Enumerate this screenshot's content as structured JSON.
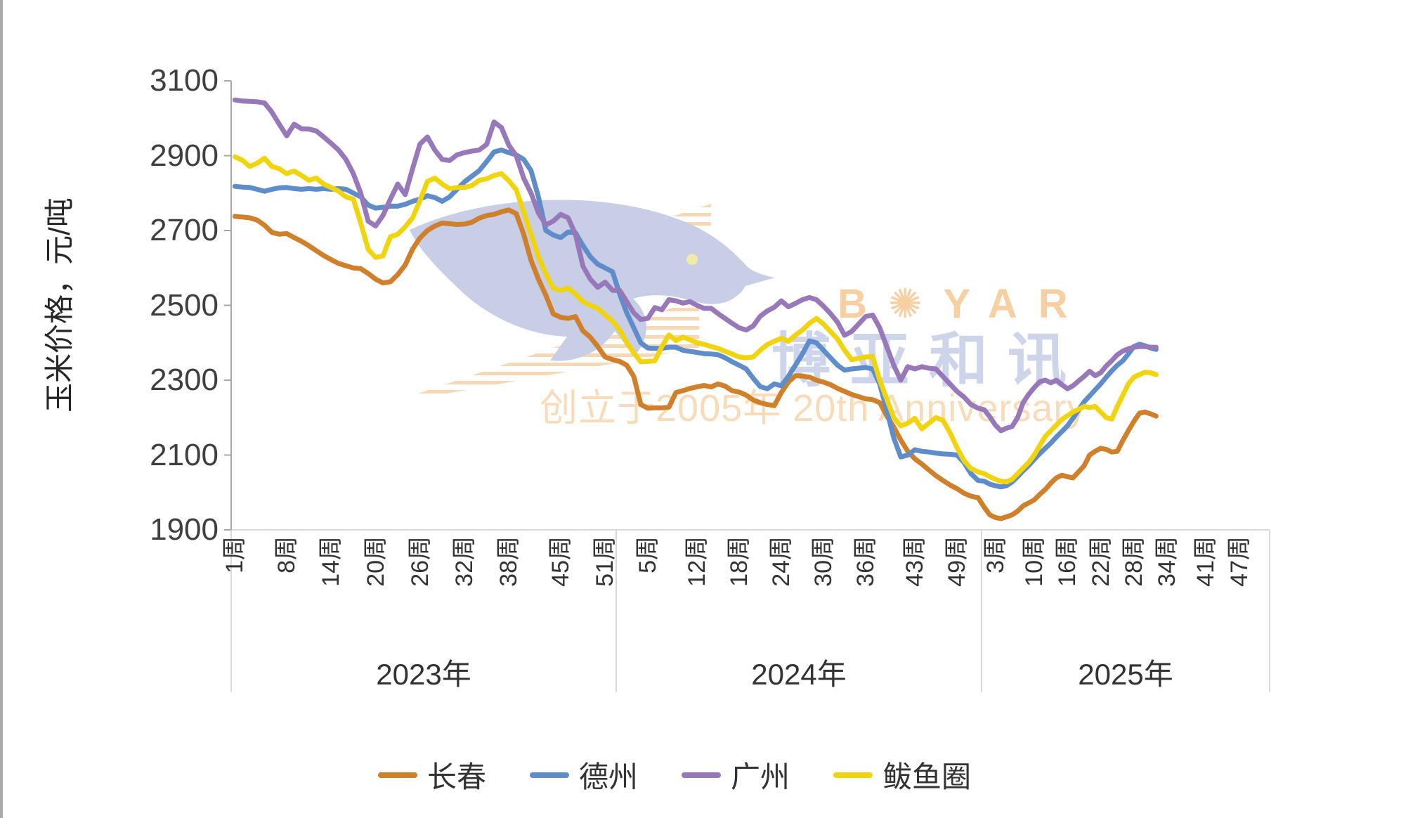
{
  "watermark": {
    "brand_en": "B✺YAR",
    "brand_cn": "博亚和讯",
    "anniversary": "创立于2005年  20th Anniversary",
    "bird_color": "#c7cee5",
    "bird_eye_color": "#f0ebaa",
    "stripe_color": "#f4cb9e",
    "brand_en_color": "#f6d0a2",
    "brand_cn_color": "#ced5eb",
    "anniversary_color": "#f8dcba"
  },
  "axis_style": {
    "baseline_color": "#d9d9d9",
    "yaxis_color": "#a6a6a6",
    "separator_color": "#d9d9d9",
    "tick_text_color": "#3f3f3f"
  },
  "chart_data": {
    "type": "line",
    "title": "",
    "xlabel": "",
    "ylabel": "玉米价格，元/吨",
    "ylim": [
      1900,
      3100
    ],
    "y_ticks": [
      3100,
      2900,
      2700,
      2500,
      2300,
      2100,
      1900
    ],
    "grid": false,
    "legend_position": "bottom",
    "x_axis_note": "weekly category axis grouped by year; 2025 data ends at week 32",
    "years": [
      {
        "label": "2023年",
        "n_weeks": 52,
        "tick_weeks": [
          1,
          8,
          14,
          20,
          26,
          32,
          38,
          45,
          51
        ],
        "tick_labels": [
          "1周",
          "8周",
          "14周",
          "20周",
          "26周",
          "32周",
          "38周",
          "45周",
          "51周"
        ]
      },
      {
        "label": "2024年",
        "n_weeks": 52,
        "tick_weeks": [
          5,
          12,
          18,
          24,
          30,
          36,
          43,
          49
        ],
        "tick_labels": [
          "5周",
          "12周",
          "18周",
          "24周",
          "30周",
          "36周",
          "43周",
          "49周"
        ]
      },
      {
        "label": "2025年",
        "n_weeks": 52,
        "tick_weeks": [
          3,
          10,
          16,
          22,
          28,
          34,
          41,
          47
        ],
        "tick_labels": [
          "3周",
          "10周",
          "16周",
          "22周",
          "28周",
          "34周",
          "41周",
          "47周"
        ]
      }
    ],
    "series": [
      {
        "name": "长春",
        "color": "#d0802b",
        "values_2023": [
          2738,
          2736,
          2734,
          2728,
          2714,
          2695,
          2690,
          2692,
          2681,
          2671,
          2659,
          2646,
          2633,
          2622,
          2612,
          2606,
          2600,
          2598,
          2585,
          2570,
          2560,
          2563,
          2582,
          2608,
          2650,
          2680,
          2700,
          2712,
          2720,
          2718,
          2716,
          2717,
          2722,
          2733,
          2740,
          2743,
          2750,
          2755,
          2745,
          2690,
          2620,
          2570,
          2527,
          2477,
          2468,
          2465,
          2470,
          2432,
          2415,
          2390,
          2362,
          2355
        ],
        "values_2024": [
          2350,
          2340,
          2310,
          2235,
          2225,
          2226,
          2226,
          2228,
          2267,
          2272,
          2278,
          2282,
          2286,
          2282,
          2290,
          2284,
          2272,
          2268,
          2260,
          2247,
          2240,
          2235,
          2232,
          2267,
          2295,
          2312,
          2311,
          2308,
          2300,
          2295,
          2288,
          2278,
          2270,
          2262,
          2256,
          2250,
          2248,
          2240,
          2205,
          2175,
          2140,
          2110,
          2090,
          2076,
          2060,
          2045,
          2032,
          2020,
          2010,
          1998,
          1990,
          1986
        ],
        "values_2025": [
          1960,
          1940,
          1933,
          1930,
          1935,
          1940,
          1950,
          1964,
          1972,
          1980,
          1995,
          2008,
          2025,
          2039,
          2046,
          2042,
          2039,
          2055,
          2071,
          2100,
          2110,
          2118,
          2115,
          2108,
          2110,
          2139,
          2165,
          2190,
          2212,
          2215,
          2210,
          2204
        ]
      },
      {
        "name": "德州",
        "color": "#5f8dc9",
        "values_2023": [
          2818,
          2816,
          2815,
          2810,
          2805,
          2810,
          2814,
          2815,
          2812,
          2810,
          2812,
          2810,
          2812,
          2810,
          2812,
          2810,
          2800,
          2790,
          2768,
          2760,
          2762,
          2765,
          2765,
          2770,
          2778,
          2784,
          2793,
          2788,
          2778,
          2790,
          2810,
          2830,
          2845,
          2860,
          2884,
          2910,
          2915,
          2908,
          2902,
          2890,
          2860,
          2790,
          2700,
          2688,
          2681,
          2696,
          2694,
          2660,
          2630,
          2610,
          2600,
          2590
        ],
        "values_2024": [
          2530,
          2480,
          2440,
          2400,
          2386,
          2385,
          2385,
          2388,
          2388,
          2380,
          2377,
          2374,
          2371,
          2370,
          2368,
          2360,
          2349,
          2340,
          2330,
          2305,
          2283,
          2277,
          2290,
          2285,
          2310,
          2340,
          2370,
          2405,
          2400,
          2380,
          2360,
          2340,
          2327,
          2330,
          2332,
          2334,
          2330,
          2290,
          2220,
          2146,
          2095,
          2100,
          2114,
          2110,
          2108,
          2105,
          2103,
          2102,
          2100,
          2080,
          2050,
          2032
        ],
        "values_2025": [
          2030,
          2022,
          2018,
          2015,
          2018,
          2028,
          2042,
          2058,
          2072,
          2088,
          2104,
          2118,
          2132,
          2148,
          2163,
          2178,
          2198,
          2220,
          2242,
          2258,
          2274,
          2290,
          2308,
          2325,
          2340,
          2352,
          2370,
          2390,
          2396,
          2392,
          2386,
          2382
        ]
      },
      {
        "name": "广州",
        "color": "#9779ba",
        "values_2023": [
          3049,
          3046,
          3045,
          3044,
          3041,
          3016,
          2984,
          2953,
          2984,
          2972,
          2971,
          2966,
          2950,
          2933,
          2915,
          2890,
          2852,
          2800,
          2725,
          2712,
          2740,
          2784,
          2824,
          2796,
          2865,
          2931,
          2950,
          2915,
          2890,
          2887,
          2902,
          2908,
          2912,
          2915,
          2930,
          2990,
          2975,
          2928,
          2900,
          2840,
          2800,
          2747,
          2715,
          2725,
          2743,
          2734,
          2690,
          2605,
          2570,
          2548,
          2562,
          2540
        ],
        "values_2024": [
          2540,
          2510,
          2480,
          2462,
          2465,
          2494,
          2488,
          2515,
          2512,
          2506,
          2510,
          2500,
          2492,
          2492,
          2478,
          2465,
          2452,
          2440,
          2434,
          2445,
          2471,
          2485,
          2495,
          2512,
          2496,
          2505,
          2515,
          2521,
          2515,
          2498,
          2478,
          2455,
          2420,
          2430,
          2450,
          2470,
          2474,
          2440,
          2390,
          2340,
          2300,
          2336,
          2330,
          2336,
          2332,
          2330,
          2310,
          2290,
          2270,
          2255,
          2235,
          2225
        ],
        "values_2025": [
          2221,
          2202,
          2180,
          2165,
          2172,
          2176,
          2200,
          2240,
          2262,
          2280,
          2296,
          2300,
          2293,
          2300,
          2288,
          2277,
          2285,
          2298,
          2310,
          2324,
          2312,
          2320,
          2338,
          2352,
          2368,
          2378,
          2384,
          2388,
          2390,
          2390,
          2388,
          2388
        ]
      },
      {
        "name": "鲅鱼圈",
        "color": "#f0d410",
        "values_2023": [
          2897,
          2888,
          2871,
          2880,
          2893,
          2871,
          2865,
          2852,
          2859,
          2847,
          2834,
          2840,
          2824,
          2815,
          2805,
          2790,
          2784,
          2720,
          2650,
          2628,
          2632,
          2683,
          2690,
          2710,
          2734,
          2780,
          2831,
          2840,
          2824,
          2812,
          2815,
          2815,
          2820,
          2834,
          2838,
          2847,
          2852,
          2833,
          2809,
          2750,
          2690,
          2630,
          2584,
          2546,
          2540,
          2546,
          2530,
          2510,
          2500,
          2492,
          2475,
          2458
        ],
        "values_2024": [
          2434,
          2400,
          2373,
          2349,
          2350,
          2352,
          2390,
          2421,
          2406,
          2415,
          2408,
          2400,
          2396,
          2390,
          2385,
          2377,
          2370,
          2362,
          2360,
          2362,
          2380,
          2395,
          2404,
          2412,
          2404,
          2420,
          2434,
          2452,
          2465,
          2450,
          2430,
          2410,
          2380,
          2355,
          2358,
          2362,
          2363,
          2300,
          2250,
          2200,
          2178,
          2185,
          2198,
          2170,
          2185,
          2200,
          2193,
          2160,
          2120,
          2085,
          2064,
          2055
        ],
        "values_2025": [
          2050,
          2042,
          2035,
          2030,
          2028,
          2035,
          2050,
          2065,
          2080,
          2100,
          2125,
          2150,
          2165,
          2180,
          2195,
          2205,
          2215,
          2222,
          2230,
          2227,
          2230,
          2215,
          2200,
          2196,
          2230,
          2260,
          2290,
          2308,
          2315,
          2321,
          2320,
          2315
        ]
      }
    ]
  }
}
